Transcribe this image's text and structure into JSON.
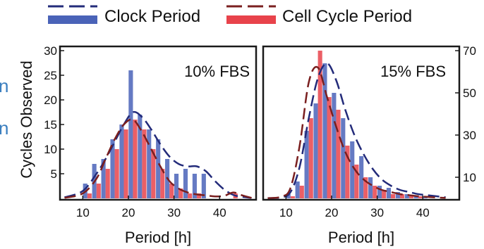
{
  "legend": {
    "items": [
      {
        "label": "Clock Period",
        "color": "#4a63b8",
        "curve_color": "#232b7a"
      },
      {
        "label": "Cell Cycle Period",
        "color": "#e8434b",
        "curve_color": "#7a1f1f"
      }
    ]
  },
  "edge_glyphs": [
    "n",
    "n"
  ],
  "chart_data": [
    {
      "type": "bar",
      "panel_label": "10% FBS",
      "xlabel": "Period [h]",
      "ylabel": "Cycles Observed",
      "xlim": [
        5,
        48
      ],
      "ylim": [
        0,
        30
      ],
      "xticks": [
        10,
        20,
        30,
        40
      ],
      "yticks": [
        5,
        10,
        15,
        20,
        25,
        30
      ],
      "y_axis_side": "left",
      "grid": false,
      "x": [
        9,
        11,
        13,
        15,
        17,
        19,
        21,
        23,
        25,
        27,
        29,
        31,
        33,
        35,
        37,
        39,
        41,
        43,
        45
      ],
      "series": [
        {
          "name": "Clock Period",
          "values": [
            0,
            3,
            7,
            8,
            12,
            15,
            26,
            17,
            14,
            12,
            8,
            5,
            6,
            5,
            5,
            0,
            0,
            0,
            0
          ]
        },
        {
          "name": "Cell Cycle Period",
          "values": [
            0,
            1,
            3,
            6,
            10,
            14,
            16,
            14,
            10,
            6,
            3,
            2,
            1,
            1,
            0,
            0,
            0,
            1,
            0
          ]
        }
      ],
      "fit_curves": [
        {
          "name": "Clock Period",
          "x": [
            6,
            10,
            13,
            15,
            17,
            19,
            21,
            23,
            25,
            27,
            29,
            31,
            33,
            35,
            37,
            39,
            41,
            43,
            45,
            47
          ],
          "y": [
            0.2,
            1.5,
            5,
            8,
            11.5,
            15,
            17.5,
            16.5,
            14,
            11,
            8.5,
            7,
            6.5,
            6.5,
            5.5,
            3.5,
            1.8,
            0.7,
            0.3,
            0.1
          ]
        },
        {
          "name": "Cell Cycle Period",
          "x": [
            6,
            10,
            13,
            15,
            17,
            19,
            21,
            23,
            25,
            27,
            29,
            31,
            33,
            35,
            37,
            39,
            41,
            43,
            45,
            47
          ],
          "y": [
            0.1,
            1,
            4,
            8,
            12,
            15,
            16,
            13.5,
            10,
            6.5,
            3.5,
            2,
            1.2,
            0.8,
            0.6,
            0.4,
            0.5,
            1.2,
            0.6,
            0.1
          ]
        }
      ]
    },
    {
      "type": "bar",
      "panel_label": "15% FBS",
      "xlabel": "Period [h]",
      "ylabel": "",
      "xlim": [
        5,
        48
      ],
      "ylim": [
        0,
        70
      ],
      "xticks": [
        10,
        20,
        30,
        40
      ],
      "yticks": [
        10,
        30,
        50,
        70
      ],
      "y_axis_side": "right",
      "grid": false,
      "x": [
        9,
        11,
        13,
        15,
        17,
        19,
        21,
        23,
        25,
        27,
        29,
        31,
        33,
        35,
        37,
        39,
        41,
        43,
        45
      ],
      "series": [
        {
          "name": "Clock Period",
          "values": [
            0,
            2,
            8,
            32,
            45,
            64,
            50,
            38,
            27,
            20,
            10,
            6,
            5,
            3,
            2,
            1,
            1,
            0,
            0
          ]
        },
        {
          "name": "Cell Cycle Period",
          "values": [
            0,
            1,
            6,
            38,
            70,
            48,
            42,
            25,
            16,
            10,
            6,
            4,
            2,
            2,
            1,
            1,
            0,
            0,
            0
          ]
        }
      ],
      "fit_curves": [
        {
          "name": "Clock Period",
          "x": [
            6,
            9,
            11,
            13,
            15,
            17,
            19,
            21,
            23,
            25,
            27,
            29,
            31,
            33,
            35,
            37,
            39,
            41,
            43,
            45
          ],
          "y": [
            0.1,
            0.5,
            3,
            15,
            38,
            57,
            64,
            56,
            42,
            30,
            21,
            14,
            9,
            6,
            4,
            3,
            2,
            1.5,
            1,
            0.5
          ]
        },
        {
          "name": "Cell Cycle Period",
          "x": [
            6,
            9,
            11,
            13,
            15,
            17,
            19,
            21,
            23,
            25,
            27,
            29,
            31,
            33,
            35,
            37,
            39,
            41,
            43,
            45
          ],
          "y": [
            0.1,
            0.8,
            5,
            25,
            55,
            62,
            48,
            34,
            22,
            14,
            9,
            6,
            4,
            3,
            2,
            1.5,
            1,
            0.7,
            0.4,
            0.2
          ]
        }
      ]
    }
  ]
}
